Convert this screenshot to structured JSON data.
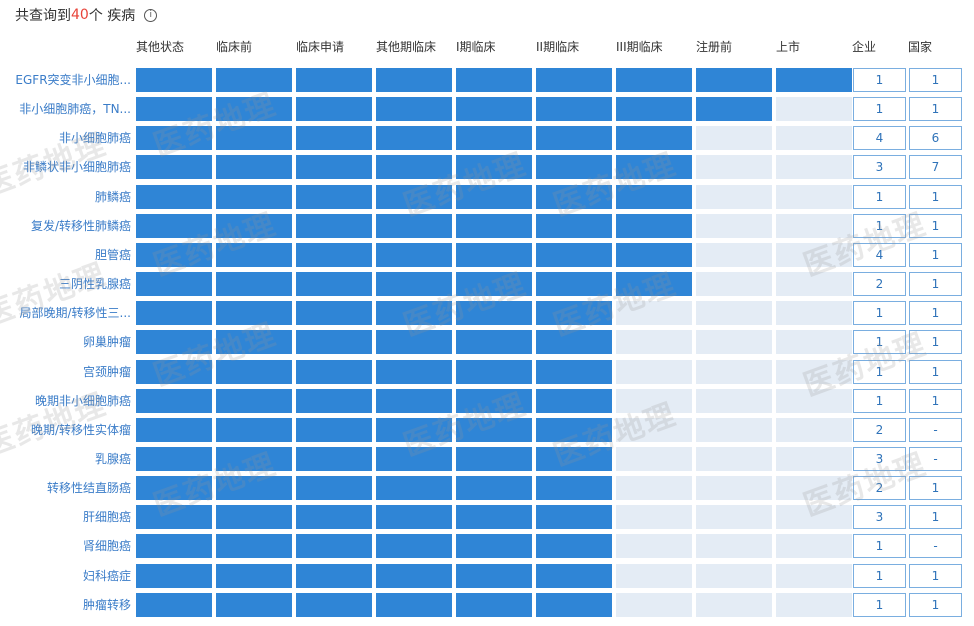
{
  "summary": {
    "prefix": "共查询到",
    "count": "40",
    "suffix": "个 疾病",
    "info_icon": "ⓘ"
  },
  "watermark_text": "医药地理",
  "chart_data": {
    "type": "heatmap",
    "stages": [
      "其他状态",
      "临床前",
      "临床申请",
      "其他期临床",
      "I期临床",
      "II期临床",
      "III期临床",
      "注册前",
      "上市"
    ],
    "count_headers": [
      "企业",
      "国家"
    ],
    "rows": [
      {
        "label": "EGFR突变非小细胞...",
        "filled": 9,
        "company": "1",
        "country": "1"
      },
      {
        "label": "非小细胞肺癌，TN...",
        "filled": 8,
        "company": "1",
        "country": "1"
      },
      {
        "label": "非小细胞肺癌",
        "filled": 7,
        "company": "4",
        "country": "6"
      },
      {
        "label": "非鳞状非小细胞肺癌",
        "filled": 7,
        "company": "3",
        "country": "7"
      },
      {
        "label": "肺鳞癌",
        "filled": 7,
        "company": "1",
        "country": "1"
      },
      {
        "label": "复发/转移性肺鳞癌",
        "filled": 7,
        "company": "1",
        "country": "1"
      },
      {
        "label": "胆管癌",
        "filled": 7,
        "company": "4",
        "country": "1"
      },
      {
        "label": "三阴性乳腺癌",
        "filled": 7,
        "company": "2",
        "country": "1"
      },
      {
        "label": "局部晚期/转移性三...",
        "filled": 6,
        "company": "1",
        "country": "1"
      },
      {
        "label": "卵巢肿瘤",
        "filled": 6,
        "company": "1",
        "country": "1"
      },
      {
        "label": "宫颈肿瘤",
        "filled": 6,
        "company": "1",
        "country": "1"
      },
      {
        "label": "晚期非小细胞肺癌",
        "filled": 6,
        "company": "1",
        "country": "1"
      },
      {
        "label": "晚期/转移性实体瘤",
        "filled": 6,
        "company": "2",
        "country": "-"
      },
      {
        "label": "乳腺癌",
        "filled": 6,
        "company": "3",
        "country": "-"
      },
      {
        "label": "转移性结直肠癌",
        "filled": 6,
        "company": "2",
        "country": "1"
      },
      {
        "label": "肝细胞癌",
        "filled": 6,
        "company": "3",
        "country": "1"
      },
      {
        "label": "肾细胞癌",
        "filled": 6,
        "company": "1",
        "country": "-"
      },
      {
        "label": "妇科癌症",
        "filled": 6,
        "company": "1",
        "country": "1"
      },
      {
        "label": "肿瘤转移",
        "filled": 6,
        "company": "1",
        "country": "1"
      }
    ],
    "colors": {
      "filled": "#2f85d6",
      "empty": "#e4ecf5",
      "count_border": "#7aaee0",
      "label": "#3a7cc8",
      "count_highlight": "#e8443a"
    }
  }
}
